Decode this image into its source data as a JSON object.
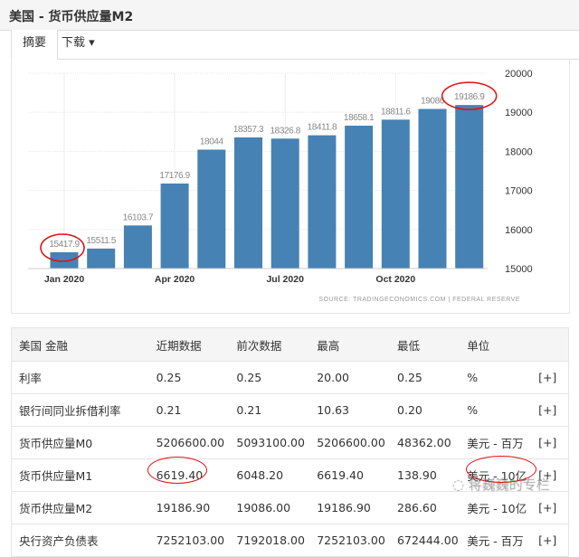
{
  "title": "美国 - 货币供应量M2",
  "tabs": [
    {
      "label": "摘要"
    },
    {
      "label": "下载 ▾"
    }
  ],
  "chart_data": {
    "type": "bar",
    "categories": [
      "Jan 2020",
      "Feb 2020",
      "Mar 2020",
      "Apr 2020",
      "May 2020",
      "Jun 2020",
      "Jul 2020",
      "Aug 2020",
      "Sep 2020",
      "Oct 2020",
      "Nov 2020",
      "Dec 2020"
    ],
    "values": [
      15417.9,
      15511.5,
      16103.7,
      17176.9,
      18044,
      18357.3,
      18326.8,
      18411.8,
      18658.1,
      18811.6,
      19086,
      19186.9
    ],
    "data_labels": [
      "15417.9",
      "15511.5",
      "16103.7",
      "17176.9",
      "18044",
      "18357.3",
      "18326.8",
      "18411.8",
      "18658.1",
      "18811.6",
      "19086",
      "19186.9"
    ],
    "x_tick_labels": [
      "Jan 2020",
      "Apr 2020",
      "Jul 2020",
      "Oct 2020"
    ],
    "y_ticks": [
      15000,
      16000,
      17000,
      18000,
      19000,
      20000
    ],
    "ylim": [
      15000,
      20000
    ],
    "y_axis_side": "right",
    "grid": true,
    "bar_color": "#4682b4",
    "annotations": [
      "red circle around 15417.9",
      "red circle around 19186.9"
    ],
    "source": "SOURCE: TRADINGECONOMICS.COM | FEDERAL RESERVE"
  },
  "table": {
    "headers": [
      "美国 金融",
      "近期数据",
      "前次数据",
      "最高",
      "最低",
      "单位",
      ""
    ],
    "rows": [
      [
        "利率",
        "0.25",
        "0.25",
        "20.00",
        "0.25",
        "%",
        "[+]"
      ],
      [
        "银行间同业拆借利率",
        "0.21",
        "0.21",
        "10.63",
        "0.20",
        "%",
        "[+]"
      ],
      [
        "货币供应量M0",
        "5206600.00",
        "5093100.00",
        "5206600.00",
        "48362.00",
        "美元 - 百万",
        "[+]"
      ],
      [
        "货币供应量M1",
        "6619.40",
        "6048.20",
        "6619.40",
        "138.90",
        "美元 - 10亿",
        "[+]"
      ],
      [
        "货币供应量M2",
        "19186.90",
        "19086.00",
        "19186.90",
        "286.60",
        "美元 - 10亿",
        "[+]"
      ],
      [
        "央行资产负债表",
        "7252103.00",
        "7192018.00",
        "7252103.00",
        "672444.00",
        "美元 - 百万",
        "[+]"
      ]
    ]
  },
  "watermark": "蒋巍巍的专栏"
}
